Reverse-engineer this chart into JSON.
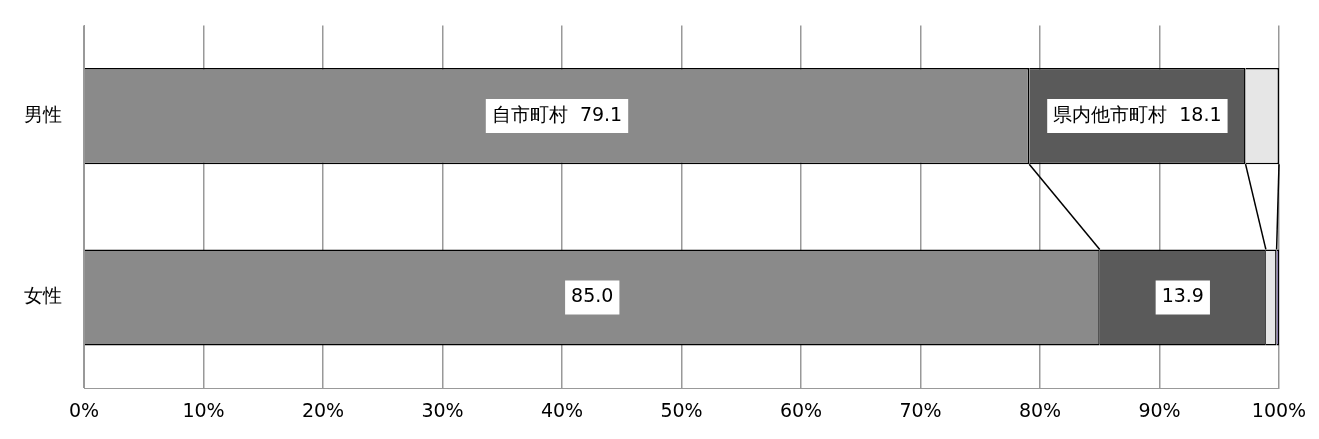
{
  "chart_data": {
    "type": "bar",
    "orientation": "horizontal",
    "stacked": true,
    "categories": [
      "男性",
      "女性"
    ],
    "series": [
      {
        "color": "#8a8a8a",
        "values": [
          79.1,
          85.0
        ],
        "value_labels": [
          "自市町村  79.1",
          "85.0"
        ]
      },
      {
        "color": "#5a5a5a",
        "values": [
          18.1,
          13.9
        ],
        "value_labels": [
          "県内他市町村  18.1",
          "13.9"
        ]
      },
      {
        "color": "#e6e6e6",
        "values": [
          2.8,
          0.9
        ]
      },
      {
        "color": "#7b68a6",
        "values": [
          null,
          0.2
        ]
      }
    ],
    "xlim": [
      0,
      100
    ],
    "xticks": [
      {
        "value": 0,
        "label": "0%"
      },
      {
        "value": 10,
        "label": "10%"
      },
      {
        "value": 20,
        "label": "20%"
      },
      {
        "value": 30,
        "label": "30%"
      },
      {
        "value": 40,
        "label": "40%"
      },
      {
        "value": 50,
        "label": "50%"
      },
      {
        "value": 60,
        "label": "60%"
      },
      {
        "value": 70,
        "label": "70%"
      },
      {
        "value": 80,
        "label": "80%"
      },
      {
        "value": 90,
        "label": "90%"
      },
      {
        "value": 100,
        "label": "100%"
      }
    ],
    "grid": "x",
    "legend": false
  }
}
